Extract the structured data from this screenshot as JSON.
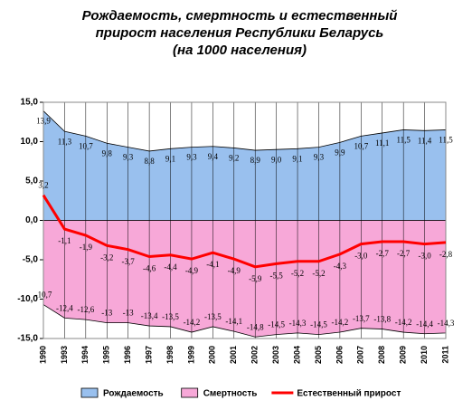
{
  "chart_data": {
    "type": "area",
    "title": [
      "Рождаемость, смертность и естественный",
      "прирост населения Республики Беларусь",
      "(на 1000 населения)"
    ],
    "categories": [
      "1990",
      "1993",
      "1994",
      "1995",
      "1996",
      "1997",
      "1998",
      "1999",
      "2000",
      "2001",
      "2002",
      "2003",
      "2004",
      "2005",
      "2006",
      "2007",
      "2008",
      "2009",
      "2010",
      "2011"
    ],
    "series": [
      {
        "name": "Рождаемость",
        "kind": "area",
        "color": "#99c0ee",
        "values": [
          13.9,
          11.3,
          10.7,
          9.8,
          9.3,
          8.8,
          9.1,
          9.3,
          9.4,
          9.2,
          8.9,
          9.0,
          9.1,
          9.3,
          9.9,
          10.7,
          11.1,
          11.5,
          11.4,
          11.5
        ],
        "value_labels": [
          "13,9",
          "11,3",
          "10,7",
          "9,8",
          "9,3",
          "8,8",
          "9,1",
          "9,3",
          "9,4",
          "9,2",
          "8,9",
          "9,0",
          "9,1",
          "9,3",
          "9,9",
          "10,7",
          "11,1",
          "11,5",
          "11,4",
          "11,5"
        ]
      },
      {
        "name": "Смертность",
        "kind": "area",
        "color": "#f7a8d8",
        "values": [
          -10.7,
          -12.4,
          -12.6,
          -13,
          -13,
          -13.4,
          -13.5,
          -14.2,
          -13.5,
          -14.1,
          -14.8,
          -14.5,
          -14.3,
          -14.5,
          -14.2,
          -13.7,
          -13.8,
          -14.2,
          -14.4,
          -14.3
        ],
        "value_labels": [
          "-10,7",
          "-12,4",
          "-12,6",
          "-13",
          "-13",
          "-13,4",
          "-13,5",
          "-14,2",
          "-13,5",
          "-14,1",
          "-14,8",
          "-14,5",
          "-14,3",
          "-14,5",
          "-14,2",
          "-13,7",
          "-13,8",
          "-14,2",
          "-14,4",
          "-14,3"
        ]
      },
      {
        "name": "Естественный прирост",
        "kind": "line",
        "color": "#ff0000",
        "values": [
          3.2,
          -1.1,
          -1.9,
          -3.2,
          -3.7,
          -4.6,
          -4.4,
          -4.9,
          -4.1,
          -4.9,
          -5.9,
          -5.5,
          -5.2,
          -5.2,
          -4.3,
          -3.0,
          -2.7,
          -2.7,
          -3.0,
          -2.8
        ],
        "value_labels": [
          "3,2",
          "-1,1",
          "-1,9",
          "-3,2",
          "-3,7",
          "-4,6",
          "-4,4",
          "-4,9",
          "-4,1",
          "-4,9",
          "-5,9",
          "-5,5",
          "-5,2",
          "-5,2",
          "-4,3",
          "-3,0",
          "-2,7",
          "-2,7",
          "-3,0",
          "-2,8"
        ]
      }
    ],
    "ylim": [
      -15,
      15
    ],
    "yticks": [
      {
        "value": -15,
        "label": "-15,0"
      },
      {
        "value": -10,
        "label": "-10,0"
      },
      {
        "value": -5,
        "label": "-5,0"
      },
      {
        "value": 0,
        "label": "0,0"
      },
      {
        "value": 5,
        "label": "5,0"
      },
      {
        "value": 10,
        "label": "10,0"
      },
      {
        "value": 15,
        "label": "15,0"
      }
    ],
    "grid": true
  }
}
